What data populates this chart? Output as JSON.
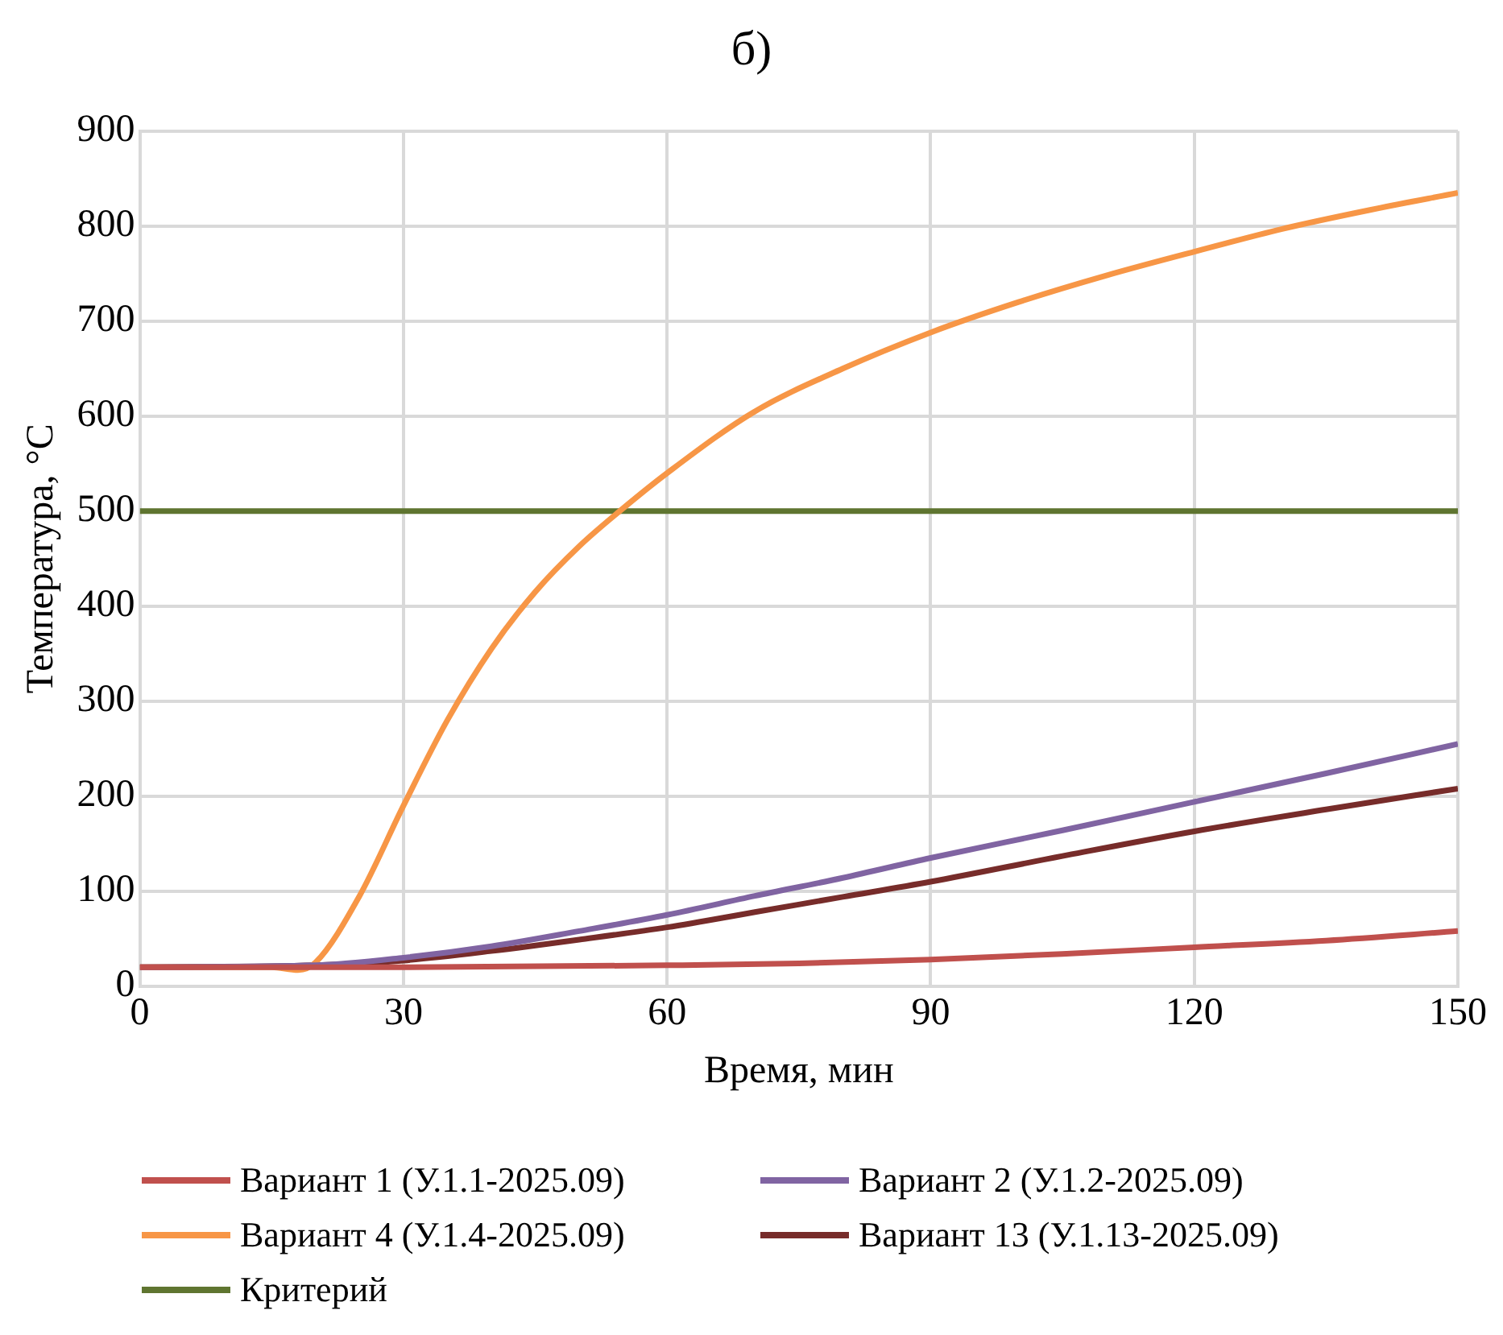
{
  "chart_data": {
    "type": "line",
    "title": "б)",
    "xlabel": "Время, мин",
    "ylabel": "Температура, °C",
    "xlim": [
      0,
      150
    ],
    "xticks": [
      0,
      30,
      60,
      90,
      120,
      150
    ],
    "ylim": [
      0,
      900
    ],
    "yticks": [
      0,
      100,
      200,
      300,
      400,
      500,
      600,
      700,
      800,
      900
    ],
    "grid": true,
    "legend": "bottom",
    "marker": "none",
    "line_style": "solid",
    "series": [
      {
        "name": "Вариант 1 (У.1.1-2025.09)",
        "color": "#c0504d",
        "x": [
          0,
          30,
          60,
          75,
          90,
          105,
          120,
          135,
          150
        ],
        "values": [
          20,
          20,
          22,
          24,
          28,
          34,
          41,
          48,
          58
        ]
      },
      {
        "name": "Вариант 2 (У.1.2-2025.09)",
        "color": "#8064a2",
        "x": [
          0,
          20,
          30,
          40,
          50,
          60,
          70,
          80,
          90,
          105,
          120,
          135,
          150
        ],
        "values": [
          20,
          22,
          30,
          42,
          58,
          75,
          95,
          114,
          135,
          164,
          194,
          224,
          255
        ]
      },
      {
        "name": "Вариант 4 (У.1.4-2025.09)",
        "color": "#f79646",
        "x": [
          0,
          15,
          18,
          20,
          25,
          30,
          35,
          40,
          45,
          50,
          55,
          60,
          70,
          80,
          90,
          100,
          110,
          120,
          130,
          140,
          150
        ],
        "values": [
          20,
          20,
          17,
          25,
          95,
          190,
          280,
          355,
          415,
          463,
          503,
          540,
          605,
          650,
          688,
          720,
          748,
          773,
          797,
          817,
          835
        ]
      },
      {
        "name": "Вариант 13 (У.1.13-2025.09)",
        "color": "#772c2a",
        "x": [
          0,
          20,
          30,
          40,
          50,
          60,
          70,
          80,
          90,
          105,
          120,
          135,
          150
        ],
        "values": [
          20,
          22,
          27,
          37,
          49,
          62,
          78,
          94,
          110,
          137,
          163,
          186,
          208
        ]
      },
      {
        "name": "Критерий",
        "color": "#5f7530",
        "x": [
          0,
          150
        ],
        "values": [
          500,
          500
        ]
      }
    ]
  }
}
